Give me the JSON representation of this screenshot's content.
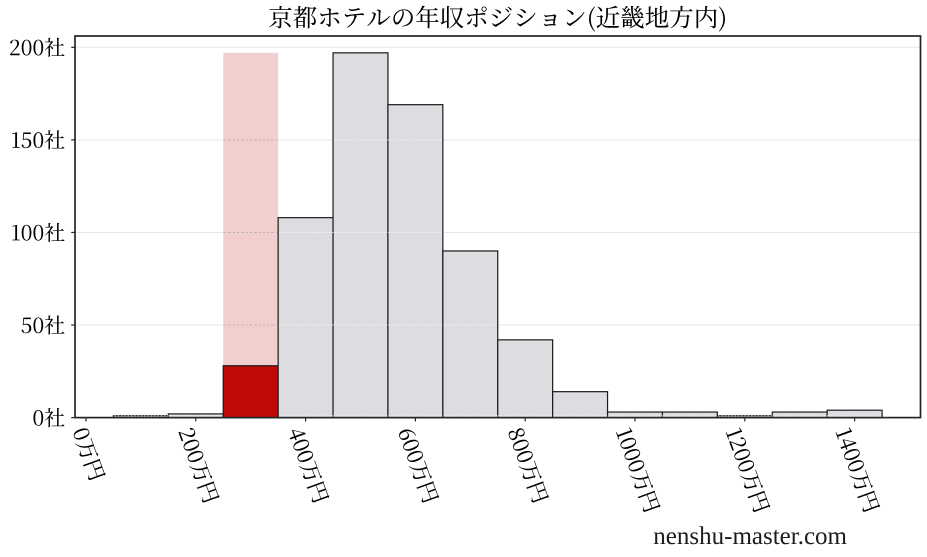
{
  "chart_data": {
    "type": "histogram",
    "title": "京都ホテルの年収ポジション(近畿地方内)",
    "x_unit": "万円",
    "y_unit": "社",
    "bin_edges": [
      50,
      150,
      250,
      350,
      450,
      550,
      650,
      750,
      850,
      950,
      1050,
      1150,
      1250,
      1350,
      1450
    ],
    "counts": [
      1,
      2,
      28,
      108,
      197,
      169,
      90,
      42,
      14,
      3,
      3,
      1,
      3,
      4
    ],
    "highlight": {
      "bin_range": [
        250,
        350
      ],
      "count": 28,
      "band_count": 197
    },
    "x_ticks": {
      "values": [
        0,
        200,
        400,
        600,
        800,
        1000,
        1200,
        1400
      ],
      "labels": [
        "0万円",
        "200万円",
        "400万円",
        "600万円",
        "800万円",
        "1000万円",
        "1200万円",
        "1400万円"
      ]
    },
    "y_ticks": {
      "values": [
        0,
        50,
        100,
        150,
        200
      ],
      "labels": [
        "0社",
        "50社",
        "100社",
        "150社",
        "200社"
      ]
    },
    "xlim": [
      -20,
      1520
    ],
    "ylim": [
      0,
      206.1
    ],
    "grid": "horizontal"
  },
  "watermark": "nenshu-master.com",
  "colors": {
    "background": "#ffffff",
    "bar_fill": "#dcdde0",
    "bar_edge": "#1a1a1a",
    "highlight_bar": "#c00a0a",
    "highlight_band": "#f2cfcf",
    "highlight_band_edge": "#8f8f8f",
    "highlight_band_grid": "#b9b2b2",
    "grid": "#e7e7e7",
    "spine": "#262626",
    "text": "#000000",
    "watermark_text": "#1c1c1c"
  }
}
